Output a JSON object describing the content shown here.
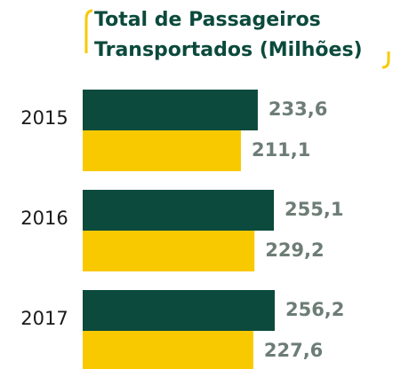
{
  "chart_data": {
    "type": "bar",
    "orientation": "horizontal",
    "title": "Total de Passageiros Transportados (Milhões)",
    "categories": [
      "2015",
      "2016",
      "2017"
    ],
    "series": [
      {
        "color": "#0b4a3c",
        "values": [
          233.6,
          255.1,
          256.2
        ],
        "value_labels": [
          "233,6",
          "255,1",
          "256,2"
        ]
      },
      {
        "color": "#f9c900",
        "values": [
          211.1,
          229.2,
          227.6
        ],
        "value_labels": [
          "211,1",
          "229,2",
          "227,6"
        ]
      }
    ]
  }
}
